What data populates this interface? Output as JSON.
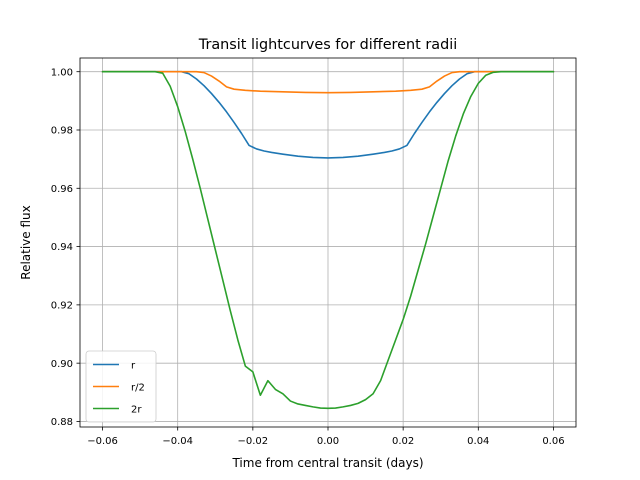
{
  "chart_data": {
    "type": "line",
    "title": "Transit lightcurves for different radii",
    "xlabel": "Time from central transit (days)",
    "ylabel": "Relative flux",
    "xlim": [
      -0.066,
      0.066
    ],
    "ylim": [
      0.8781,
      1.0047
    ],
    "grid": true,
    "legend_position": "lower-left",
    "x_ticks": [
      "−0.06",
      "−0.04",
      "−0.02",
      "0.00",
      "0.02",
      "0.04",
      "0.06"
    ],
    "y_ticks": [
      "0.88",
      "0.90",
      "0.92",
      "0.94",
      "0.96",
      "0.98",
      "1.00"
    ],
    "series": [
      {
        "name": "r",
        "color": "#1f77b4",
        "points": [
          [
            -0.06,
            1.0
          ],
          [
            -0.045,
            1.0
          ],
          [
            -0.039,
            1.0
          ],
          [
            -0.037,
            0.9993
          ],
          [
            -0.035,
            0.9975
          ],
          [
            -0.033,
            0.9952
          ],
          [
            -0.031,
            0.9925
          ],
          [
            -0.029,
            0.9895
          ],
          [
            -0.027,
            0.9862
          ],
          [
            -0.025,
            0.9826
          ],
          [
            -0.023,
            0.9788
          ],
          [
            -0.021,
            0.9747
          ],
          [
            -0.019,
            0.9735
          ],
          [
            -0.017,
            0.9728
          ],
          [
            -0.015,
            0.9723
          ],
          [
            -0.012,
            0.9717
          ],
          [
            -0.008,
            0.971
          ],
          [
            -0.004,
            0.9706
          ],
          [
            0.0,
            0.9704
          ],
          [
            0.004,
            0.9706
          ],
          [
            0.008,
            0.971
          ],
          [
            0.012,
            0.9717
          ],
          [
            0.015,
            0.9723
          ],
          [
            0.017,
            0.9728
          ],
          [
            0.019,
            0.9735
          ],
          [
            0.021,
            0.9747
          ],
          [
            0.023,
            0.9788
          ],
          [
            0.025,
            0.9826
          ],
          [
            0.027,
            0.9862
          ],
          [
            0.029,
            0.9895
          ],
          [
            0.031,
            0.9925
          ],
          [
            0.033,
            0.9952
          ],
          [
            0.035,
            0.9975
          ],
          [
            0.037,
            0.9993
          ],
          [
            0.039,
            1.0
          ],
          [
            0.045,
            1.0
          ],
          [
            0.06,
            1.0
          ]
        ]
      },
      {
        "name": "r/2",
        "color": "#ff7f0e",
        "points": [
          [
            -0.06,
            1.0
          ],
          [
            -0.035,
            1.0
          ],
          [
            -0.033,
            0.9997
          ],
          [
            -0.031,
            0.9985
          ],
          [
            -0.029,
            0.9968
          ],
          [
            -0.027,
            0.9948
          ],
          [
            -0.025,
            0.994
          ],
          [
            -0.022,
            0.9936
          ],
          [
            -0.018,
            0.9933
          ],
          [
            -0.012,
            0.9931
          ],
          [
            -0.006,
            0.9929
          ],
          [
            0.0,
            0.9928
          ],
          [
            0.006,
            0.9929
          ],
          [
            0.012,
            0.9931
          ],
          [
            0.018,
            0.9933
          ],
          [
            0.022,
            0.9936
          ],
          [
            0.025,
            0.994
          ],
          [
            0.027,
            0.9948
          ],
          [
            0.029,
            0.9968
          ],
          [
            0.031,
            0.9985
          ],
          [
            0.033,
            0.9997
          ],
          [
            0.035,
            1.0
          ],
          [
            0.06,
            1.0
          ]
        ]
      },
      {
        "name": "2r",
        "color": "#2ca02c",
        "points": [
          [
            -0.06,
            1.0
          ],
          [
            -0.046,
            1.0
          ],
          [
            -0.044,
            0.9995
          ],
          [
            -0.042,
            0.995
          ],
          [
            -0.04,
            0.988
          ],
          [
            -0.038,
            0.9795
          ],
          [
            -0.036,
            0.97
          ],
          [
            -0.034,
            0.96
          ],
          [
            -0.032,
            0.9495
          ],
          [
            -0.03,
            0.939
          ],
          [
            -0.028,
            0.9285
          ],
          [
            -0.026,
            0.918
          ],
          [
            -0.024,
            0.908
          ],
          [
            -0.022,
            0.899
          ],
          [
            -0.02,
            0.897
          ],
          [
            -0.018,
            0.889
          ],
          [
            -0.016,
            0.894
          ],
          [
            -0.014,
            0.891
          ],
          [
            -0.012,
            0.8895
          ],
          [
            -0.01,
            0.887
          ],
          [
            -0.008,
            0.886
          ],
          [
            -0.006,
            0.8855
          ],
          [
            -0.004,
            0.885
          ],
          [
            -0.002,
            0.8846
          ],
          [
            0.0,
            0.8845
          ],
          [
            0.002,
            0.8846
          ],
          [
            0.004,
            0.885
          ],
          [
            0.006,
            0.8855
          ],
          [
            0.008,
            0.8862
          ],
          [
            0.01,
            0.8875
          ],
          [
            0.012,
            0.8895
          ],
          [
            0.014,
            0.894
          ],
          [
            0.016,
            0.901
          ],
          [
            0.018,
            0.908
          ],
          [
            0.02,
            0.915
          ],
          [
            0.022,
            0.923
          ],
          [
            0.024,
            0.932
          ],
          [
            0.026,
            0.941
          ],
          [
            0.028,
            0.9505
          ],
          [
            0.03,
            0.96
          ],
          [
            0.032,
            0.9695
          ],
          [
            0.034,
            0.978
          ],
          [
            0.036,
            0.9855
          ],
          [
            0.038,
            0.9915
          ],
          [
            0.04,
            0.996
          ],
          [
            0.042,
            0.9988
          ],
          [
            0.044,
            0.9998
          ],
          [
            0.046,
            1.0
          ],
          [
            0.06,
            1.0
          ]
        ]
      }
    ]
  }
}
